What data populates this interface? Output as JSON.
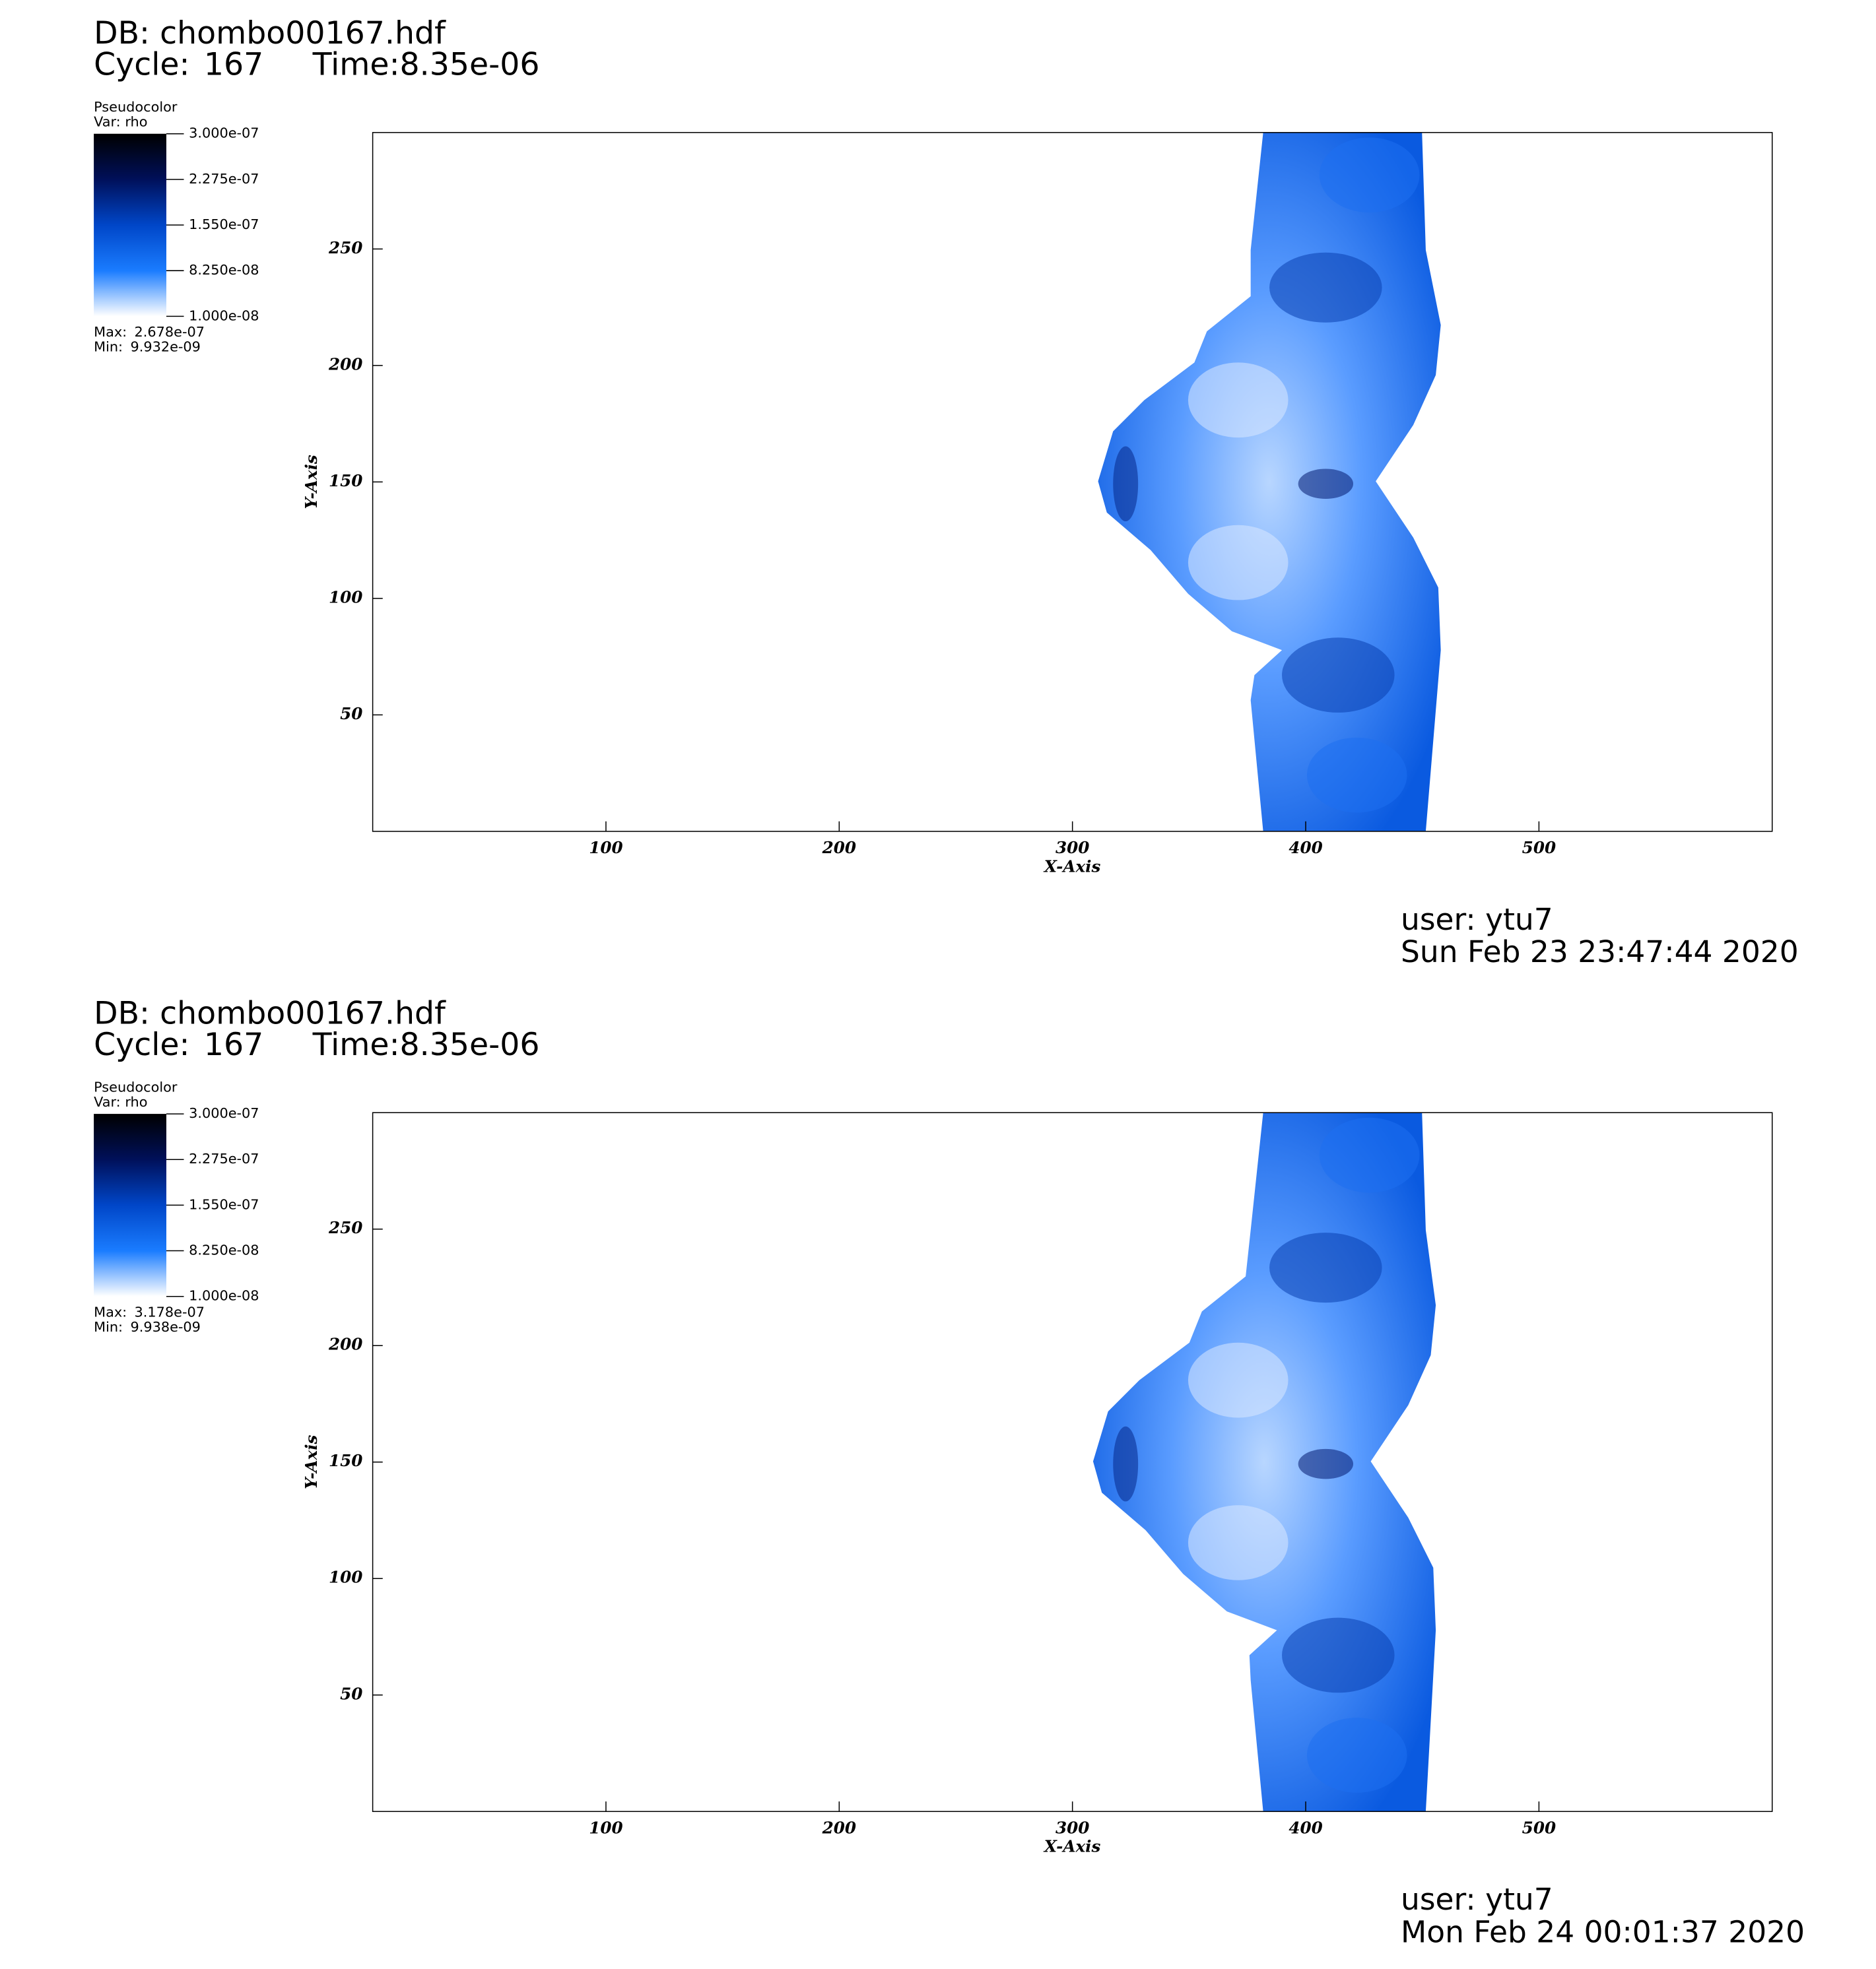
{
  "chart_data": [
    {
      "type": "pseudocolor",
      "db": "DB: chombo00167.hdf",
      "cycle_label": "Cycle:",
      "cycle": 167,
      "time_label": "Time:",
      "time": {
        "value": 8.35e-06,
        "label": "8.35e-06"
      },
      "plot_name": "Pseudocolor",
      "variable": "Var: rho",
      "colorbar": {
        "clim": [
          1e-08,
          3e-07
        ],
        "colors": [
          "#ffffff",
          "#1a7cff",
          "#0046c8",
          "#00105a",
          "#000000"
        ],
        "ticks": [
          {
            "value": 3e-07,
            "label": "3.000e-07"
          },
          {
            "value": 2.275e-07,
            "label": "2.275e-07"
          },
          {
            "value": 1.55e-07,
            "label": "1.550e-07"
          },
          {
            "value": 8.25e-08,
            "label": "8.250e-08"
          },
          {
            "value": 1e-08,
            "label": "1.000e-08"
          }
        ]
      },
      "max_label": "Max:",
      "max": {
        "value": 2.678e-07,
        "label": "2.678e-07"
      },
      "min_label": "Min:",
      "min": {
        "value": 9.932e-09,
        "label": "9.932e-09"
      },
      "xlabel": "X-Axis",
      "ylabel": "Y-Axis",
      "xlim": [
        0,
        600
      ],
      "ylim": [
        0,
        300
      ],
      "xticks": [
        100,
        200,
        300,
        400,
        500
      ],
      "yticks": [
        50,
        100,
        150,
        200,
        250
      ],
      "user": "user: ytu7",
      "date": "Sun Feb 23 23:47:44 2020"
    },
    {
      "type": "pseudocolor",
      "db": "DB: chombo00167.hdf",
      "cycle_label": "Cycle:",
      "cycle": 167,
      "time_label": "Time:",
      "time": {
        "value": 8.35e-06,
        "label": "8.35e-06"
      },
      "plot_name": "Pseudocolor",
      "variable": "Var: rho",
      "colorbar": {
        "clim": [
          1e-08,
          3e-07
        ],
        "colors": [
          "#ffffff",
          "#1a7cff",
          "#0046c8",
          "#00105a",
          "#000000"
        ],
        "ticks": [
          {
            "value": 3e-07,
            "label": "3.000e-07"
          },
          {
            "value": 2.275e-07,
            "label": "2.275e-07"
          },
          {
            "value": 1.55e-07,
            "label": "1.550e-07"
          },
          {
            "value": 8.25e-08,
            "label": "8.250e-08"
          },
          {
            "value": 1e-08,
            "label": "1.000e-08"
          }
        ]
      },
      "max_label": "Max:",
      "max": {
        "value": 3.178e-07,
        "label": "3.178e-07"
      },
      "min_label": "Min:",
      "min": {
        "value": 9.938e-09,
        "label": "9.938e-09"
      },
      "xlabel": "X-Axis",
      "ylabel": "Y-Axis",
      "xlim": [
        0,
        600
      ],
      "ylim": [
        0,
        300
      ],
      "xticks": [
        100,
        200,
        300,
        400,
        500
      ],
      "yticks": [
        50,
        100,
        150,
        200,
        250
      ],
      "user": "user: ytu7",
      "date": "Mon Feb 24 00:01:37 2020"
    }
  ]
}
